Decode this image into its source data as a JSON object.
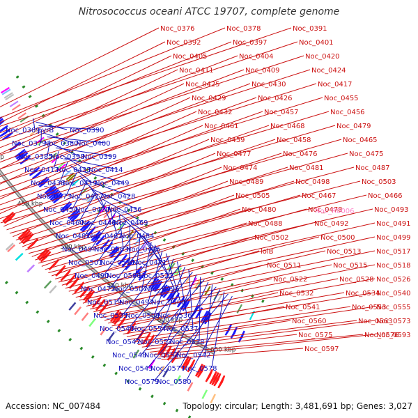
{
  "title": "Nitrosococcus oceani ATCC 19707, complete genome",
  "accession_label": "Accession: NC_007484",
  "summary": "Topology: circular; Length: 3,481,691 bp; Genes: 3,027",
  "colors": {
    "forward_strand": "#ff1a1a",
    "reverse_strand": "#1a1aff",
    "backbone": "#999999",
    "rna_label": "#ff88cc",
    "tick_marker": "#2a8a2a"
  },
  "kbp_ticks": [
    "400 kbp",
    "450 kbp",
    "500 kbp",
    "550 kbp",
    "600 kbp",
    "650 kbp"
  ],
  "red_labels": [
    "Noc_0376",
    "Noc_0378",
    "Noc_0391",
    "Noc_0392",
    "Noc_0397",
    "Noc_0401",
    "Noc_0405",
    "Noc_0404",
    "Noc_0420",
    "Noc_0411",
    "Noc_0409",
    "Noc_0424",
    "Noc_0425",
    "Noc_0430",
    "Noc_0417",
    "Noc_0429",
    "Noc_0426",
    "Noc_0455",
    "Noc_0432",
    "Noc_0457",
    "Noc_0456",
    "Noc_0461",
    "Noc_0468",
    "Noc_0479",
    "Noc_0459",
    "Noc_0458",
    "Noc_0465",
    "Noc_0477",
    "Noc_0476",
    "Noc_0475",
    "Noc_0474",
    "Noc_0481",
    "Noc_0487",
    "Noc_0489",
    "Noc_0498",
    "Noc_0503",
    "Noc_0505",
    "Noc_0467",
    "Noc_0466",
    "Noc_0480",
    "Noc_0478",
    "Noc_0493",
    "Noc_0488",
    "Noc_0492",
    "Noc_0491",
    "Noc_0502",
    "Noc_0500",
    "Noc_0499",
    "lolB",
    "Noc_0513",
    "Noc_0517",
    "Noc_0511",
    "Noc_0515",
    "Noc_0518",
    "Noc_0522",
    "Noc_0528",
    "Noc_0526",
    "Noc_0532",
    "Noc_0534",
    "Noc_0540",
    "Noc_0541",
    "Noc_0553",
    "Noc_0555",
    "Noc_0560",
    "Noc_0563",
    "Noc_0573",
    "Noc_0575",
    "Noc_0576",
    "Noc_0593",
    "Noc_0597"
  ],
  "rna_labels": [
    "Noc_R0006"
  ],
  "blue_labels": [
    "Noc_0369",
    "pyrB",
    "Noc_0390",
    "Noc_0379",
    "Noc_0380",
    "Noc_0400",
    "Noc_0385",
    "Noc_0398",
    "Noc_0399",
    "Noc_0413",
    "Noc_0433",
    "Noc_0414",
    "Noc_0438",
    "Noc_0419",
    "Noc_0449",
    "Noc_0473",
    "Noc_0427",
    "Noc_0428",
    "Noc_0454",
    "Noc_0470",
    "Noc_0436",
    "Noc_0460",
    "Noc_0446",
    "Noc_0469",
    "Noc_0482",
    "Noc_0462",
    "Noc_0484",
    "Noc_0494",
    "Noc_0463",
    "Noc_0486",
    "Noc_0501",
    "Noc_0510",
    "Noc_0471",
    "Noc_0490",
    "Noc_0506",
    "Noc_0521",
    "Noc_0472",
    "Noc_0507",
    "Noc_0496",
    "Noc_0519",
    "Noc_0497",
    "Noc_0508",
    "Noc_0535",
    "Noc_0509",
    "Noc_0536",
    "Noc_0546",
    "Noc_0554",
    "Noc_0537",
    "Noc_0547",
    "Noc_0557",
    "Noc_0538",
    "Noc_0548",
    "Noc_0552",
    "Noc_0542",
    "Noc_0543",
    "Noc_0577",
    "Noc_0578",
    "Noc_0579",
    "Noc_0580"
  ]
}
